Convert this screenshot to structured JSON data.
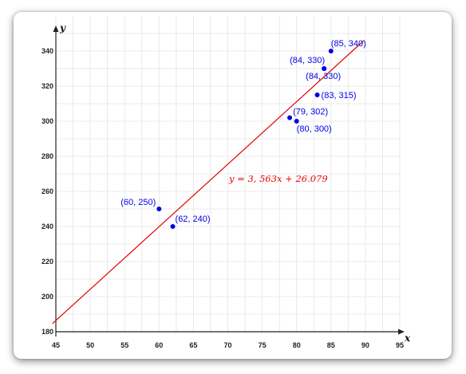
{
  "chart_data": {
    "type": "scatter",
    "xlabel": "x",
    "ylabel": "y",
    "xlim": [
      45,
      95
    ],
    "ylim": [
      180,
      350
    ],
    "xticks": [
      45,
      50,
      55,
      60,
      65,
      70,
      75,
      80,
      85,
      90,
      95
    ],
    "yticks": [
      180,
      200,
      220,
      240,
      260,
      280,
      300,
      320,
      340
    ],
    "grid": true,
    "points": [
      {
        "x": 60,
        "y": 250,
        "label": "(60, 250)"
      },
      {
        "x": 62,
        "y": 240,
        "label": "(62, 240)"
      },
      {
        "x": 79,
        "y": 302,
        "label": "(79, 302)"
      },
      {
        "x": 80,
        "y": 300,
        "label": "(80, 300)"
      },
      {
        "x": 83,
        "y": 315,
        "label": "(83, 315)"
      },
      {
        "x": 84,
        "y": 330,
        "label": "(84, 330)"
      },
      {
        "x": 84,
        "y": 330,
        "label": "(84, 330)"
      },
      {
        "x": 85,
        "y": 340,
        "label": "(85, 340)"
      }
    ],
    "trendline": {
      "equation": "y = 3, 563x + 26.079",
      "slope": 3.563,
      "intercept": 26.079
    },
    "colors": {
      "points": "#0000e6",
      "trendline": "#e60000",
      "grid": "#e4e4e4",
      "axis": "#222222"
    }
  }
}
